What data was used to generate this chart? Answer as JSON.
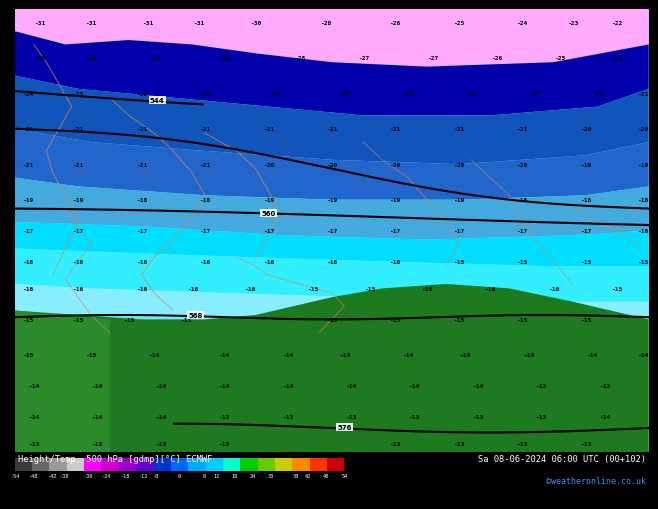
{
  "title_left": "Height/Temp. 500 hPa [gdmp][°C] ECMWF",
  "title_right_line1": "Sa 08-06-2024 06:00 UTC (00+102)",
  "title_right_line2": "©weatheronline.co.uk",
  "fig_width": 6.34,
  "fig_height": 4.9,
  "colorbar_colors": [
    "#3a3a3a",
    "#6a6a6a",
    "#999999",
    "#cccccc",
    "#ff00ff",
    "#cc00cc",
    "#9900cc",
    "#6600cc",
    "#0033cc",
    "#0066ff",
    "#00aaff",
    "#00ccff",
    "#00ffcc",
    "#00cc00",
    "#66cc00",
    "#cccc00",
    "#ff8800",
    "#ff3300",
    "#cc0000"
  ],
  "colorbar_tick_labels": [
    "-54",
    "-48",
    "-42",
    "-38",
    "-30",
    "-24",
    "-18",
    "-12",
    "-8",
    "0",
    "8",
    "12",
    "18",
    "24",
    "30",
    "38",
    "42",
    "48",
    "54"
  ],
  "colorbar_tick_vals": [
    -54,
    -48,
    -42,
    -38,
    -30,
    -24,
    -18,
    -12,
    -8,
    0,
    8,
    12,
    18,
    24,
    30,
    38,
    42,
    48,
    54
  ],
  "pink_color": "#ffaaff",
  "dark_blue_color": "#0000aa",
  "medium_blue_color": "#1155bb",
  "cornflower_blue": "#2266cc",
  "steel_blue": "#4488cc",
  "light_blue1": "#44aadd",
  "light_blue2": "#44bbee",
  "cyan1": "#00ddff",
  "cyan2": "#33eeff",
  "light_cyan": "#55eeff",
  "very_light_cyan": "#88eeff",
  "pale_cyan": "#aaeeff",
  "green_land": "#1e7a1e",
  "boundary_color": "#cc8855",
  "contour_color": "#000000"
}
